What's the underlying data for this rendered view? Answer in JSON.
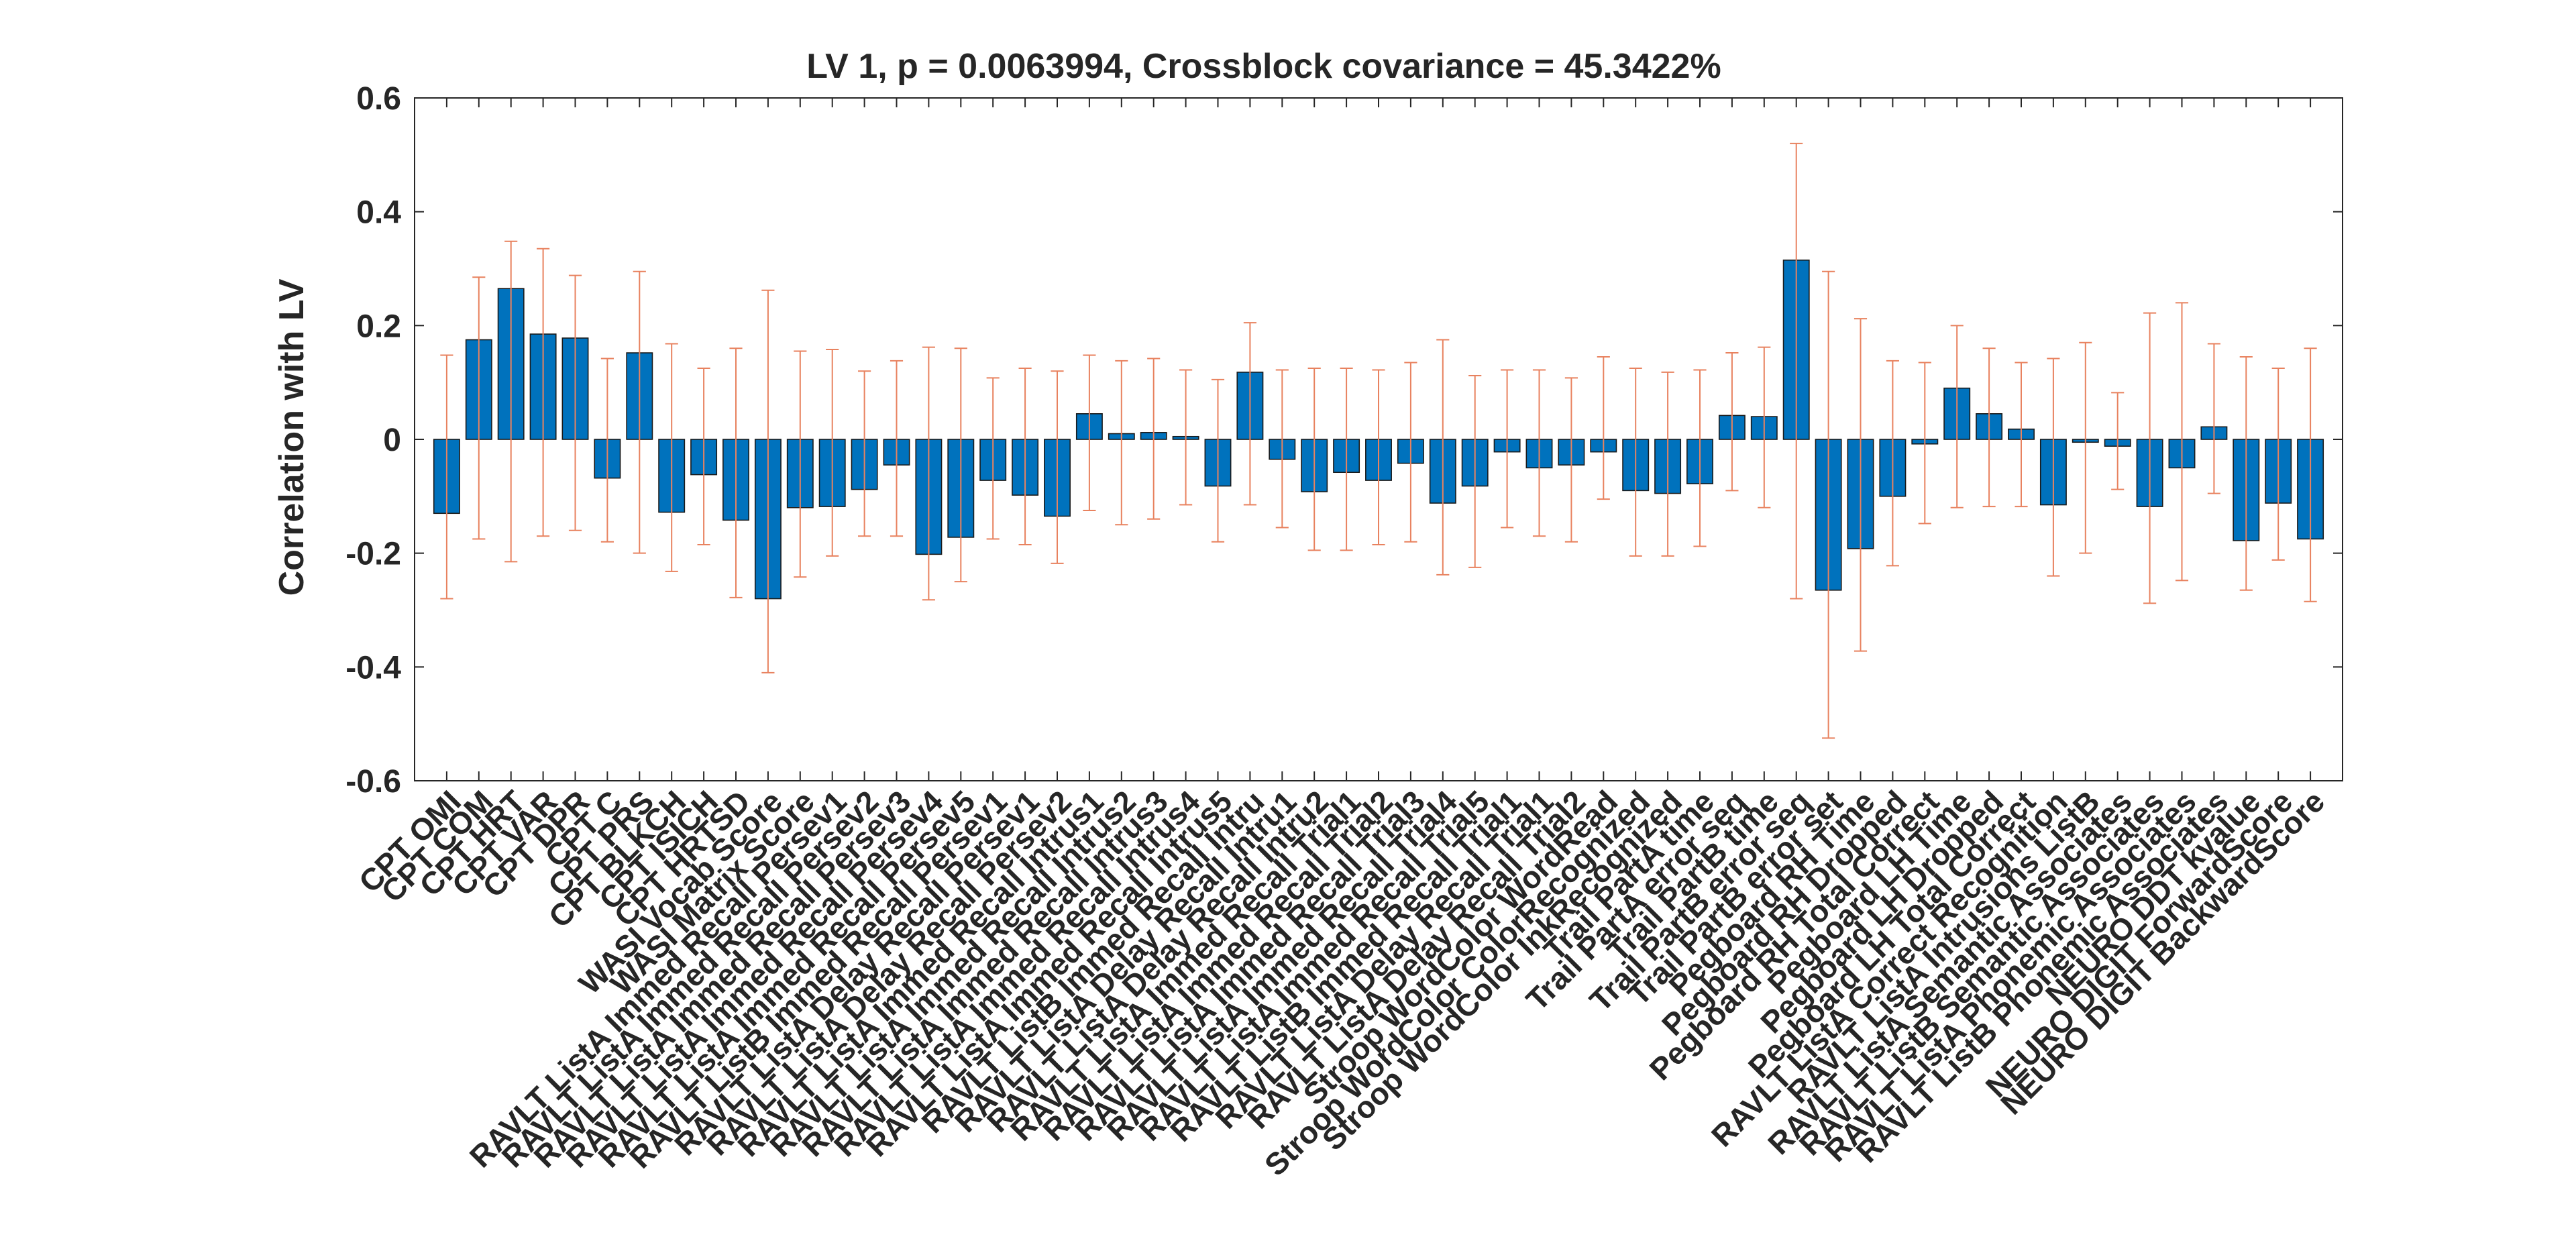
{
  "colors": {
    "bar": "#0072BD",
    "error_bar": "#E8825F",
    "axis": "#262626",
    "background": "#ffffff"
  },
  "chart_data": {
    "type": "bar",
    "title": "LV 1, p = 0.0063994, Crossblock covariance = 45.3422%",
    "xlabel": "",
    "ylabel": "Correlation with LV",
    "ylim": [
      -0.6,
      0.6
    ],
    "yticks": [
      "-0.6",
      "-0.4",
      "-0.2",
      "0",
      "0.2",
      "0.4",
      "0.6"
    ],
    "grid": false,
    "error_bars": true,
    "categories": [
      "CPT OMI",
      "CPT COM",
      "CPT HRT",
      "CPT VAR",
      "CPT DPR",
      "CPT C",
      "CPT PRS",
      "CPT BLKCH",
      "CPT ISICH",
      "CPT HRTSD",
      "WASI Vocab Score",
      "WASI Matrix Score",
      "RAVLT ListA Immed Recall Persev1",
      "RAVLT ListA Immed Recall Persev2",
      "RAVLT ListA Immed Recall Persev3",
      "RAVLT ListA Immed Recall Persev4",
      "RAVLT ListA Immed Recall Persev5",
      "RAVLT ListB Immed Recall Persev1",
      "RAVLT ListA Delay Recall Persev1",
      "RAVLT ListA Delay Recall Persev2",
      "RAVLT ListA Immed Recall Intrus1",
      "RAVLT ListA Immed Recall Intrus2",
      "RAVLT ListA Immed Recall Intrus3",
      "RAVLT ListA Immed Recall Intrus4",
      "RAVLT ListA Immed Recall Intrus5",
      "RAVLT ListB Immed Recall Intru",
      "RAVLT ListA Delay Recall Intru1",
      "RAVLT ListA Delay Recall Intru2",
      "RAVLT ListA Immed Recall Trial1",
      "RAVLT ListA Immed Recall Trial2",
      "RAVLT ListA Immed Recall Trial3",
      "RAVLT ListA Immed Recall Trial4",
      "RAVLT ListA Immed Recall Trial5",
      "RAVLT ListB Immed Recall Trial1",
      "RAVLT ListA Delay Recall Trial1",
      "RAVLT ListA Delay Recall Trial2",
      "Stroop WordColor WordRead",
      "Stroop WordColor ColorRecognized",
      "Stroop WordColor InkRecognized",
      "Trail PartA time",
      "Trail PartA error seq",
      "Trail PartB time",
      "Trail PartB error seq",
      "Trail PartB error set",
      "Pegboard RH Time",
      "Pegboard RH Dropped",
      "Pegboard RH Total Correct",
      "Pegboard LH Time",
      "Pegboard LH Dropped",
      "Pegboard LH Total Correct",
      "RAVLT ListA Correct Recognition",
      "RAVLT ListA Intrusions ListB",
      "RAVLT ListA Semantic Associates",
      "RAVLT ListB Semantic Associates",
      "RAVLT ListA Phonemic Associates",
      "RAVLT ListB Phonemic Associates",
      "NEURO DDT kvalue",
      "NEURO DIGIT ForwardScore",
      "NEURO DIGIT BackwardScore"
    ],
    "series": [
      {
        "values": [
          -0.13,
          0.175,
          0.265,
          0.185,
          0.178,
          -0.068,
          0.152,
          -0.128,
          -0.062,
          -0.142,
          -0.28,
          -0.12,
          -0.118,
          -0.088,
          -0.045,
          -0.202,
          -0.172,
          -0.072,
          -0.098,
          -0.135,
          0.045,
          0.01,
          0.012,
          0.005,
          -0.082,
          0.118,
          -0.035,
          -0.092,
          -0.058,
          -0.072,
          -0.042,
          -0.112,
          -0.082,
          -0.022,
          -0.05,
          -0.045,
          -0.022,
          -0.09,
          -0.095,
          -0.078,
          0.042,
          0.04,
          0.315,
          -0.265,
          -0.192,
          -0.1,
          -0.008,
          0.09,
          0.045,
          0.018,
          -0.115,
          -0.005,
          -0.012,
          -0.118,
          -0.05,
          0.022,
          -0.178,
          -0.112,
          -0.175
        ],
        "error_low": [
          -0.28,
          -0.175,
          -0.215,
          -0.17,
          -0.16,
          -0.18,
          -0.2,
          -0.232,
          -0.185,
          -0.278,
          -0.41,
          -0.242,
          -0.205,
          -0.17,
          -0.17,
          -0.282,
          -0.25,
          -0.175,
          -0.185,
          -0.218,
          -0.125,
          -0.15,
          -0.14,
          -0.115,
          -0.18,
          -0.115,
          -0.155,
          -0.195,
          -0.195,
          -0.185,
          -0.18,
          -0.238,
          -0.225,
          -0.155,
          -0.17,
          -0.18,
          -0.105,
          -0.205,
          -0.205,
          -0.188,
          -0.09,
          -0.12,
          -0.28,
          -0.525,
          -0.372,
          -0.222,
          -0.148,
          -0.12,
          -0.118,
          -0.118,
          -0.24,
          -0.2,
          -0.088,
          -0.288,
          -0.248,
          -0.095,
          -0.265,
          -0.212,
          -0.285
        ],
        "error_high": [
          0.148,
          0.285,
          0.348,
          0.335,
          0.288,
          0.142,
          0.295,
          0.168,
          0.125,
          0.16,
          0.262,
          0.155,
          0.158,
          0.12,
          0.138,
          0.162,
          0.16,
          0.108,
          0.125,
          0.12,
          0.148,
          0.138,
          0.142,
          0.122,
          0.105,
          0.205,
          0.122,
          0.125,
          0.125,
          0.122,
          0.135,
          0.175,
          0.112,
          0.122,
          0.122,
          0.108,
          0.145,
          0.125,
          0.118,
          0.122,
          0.152,
          0.162,
          0.52,
          0.295,
          0.212,
          0.138,
          0.135,
          0.2,
          0.16,
          0.135,
          0.142,
          0.17,
          0.082,
          0.222,
          0.24,
          0.168,
          0.145,
          0.125,
          0.16
        ]
      }
    ]
  }
}
